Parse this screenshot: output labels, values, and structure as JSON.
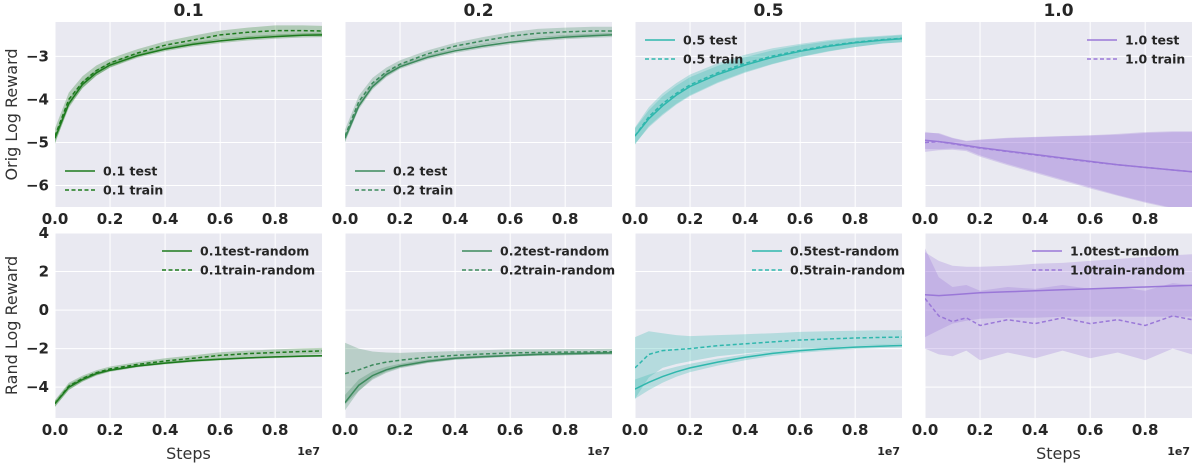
{
  "colors": {
    "panel_bg": "#e9e9f1",
    "grid": "#ffffff",
    "columns": [
      "#1d7a1d",
      "#3c8a5c",
      "#2fb7ad",
      "#9a78d8"
    ]
  },
  "chart_data": [
    {
      "type": "line",
      "title": "0.1",
      "xlabel": "",
      "ylabel": "Orig Log Reward",
      "xlim": [
        0,
        0.97
      ],
      "ylim": [
        -6.5,
        -2.2
      ],
      "xticks": [
        "0.0",
        "0.2",
        "0.4",
        "0.6",
        "0.8"
      ],
      "yticks": [
        "-3",
        "-4",
        "-5",
        "-6"
      ],
      "legend": "bottom-left",
      "x": [
        0,
        0.05,
        0.1,
        0.15,
        0.2,
        0.3,
        0.4,
        0.5,
        0.6,
        0.7,
        0.8,
        0.9,
        0.97
      ],
      "series": [
        {
          "name": "0.1 test",
          "style": "solid",
          "values": [
            -4.9,
            -4.1,
            -3.65,
            -3.38,
            -3.2,
            -2.98,
            -2.83,
            -2.72,
            -2.64,
            -2.58,
            -2.54,
            -2.51,
            -2.5
          ],
          "band": [
            0.1,
            0.1,
            0.08,
            0.07,
            0.06,
            0.05,
            0.05,
            0.05,
            0.05,
            0.05,
            0.05,
            0.05,
            0.05
          ]
        },
        {
          "name": "0.1 train",
          "style": "dashed",
          "values": [
            -4.85,
            -4.0,
            -3.6,
            -3.33,
            -3.15,
            -2.92,
            -2.74,
            -2.62,
            -2.5,
            -2.44,
            -2.4,
            -2.4,
            -2.41
          ],
          "band": [
            0.18,
            0.16,
            0.14,
            0.12,
            0.1,
            0.09,
            0.09,
            0.1,
            0.1,
            0.11,
            0.12,
            0.12,
            0.12
          ]
        }
      ]
    },
    {
      "type": "line",
      "title": "0.2",
      "xlabel": "",
      "ylabel": "",
      "xlim": [
        0,
        0.97
      ],
      "ylim": [
        -6.5,
        -2.2
      ],
      "xticks": [
        "0.0",
        "0.2",
        "0.4",
        "0.6",
        "0.8"
      ],
      "yticks": [],
      "legend": "bottom-left",
      "x": [
        0,
        0.05,
        0.1,
        0.15,
        0.2,
        0.3,
        0.4,
        0.5,
        0.6,
        0.7,
        0.8,
        0.9,
        0.97
      ],
      "series": [
        {
          "name": "0.2 test",
          "style": "solid",
          "values": [
            -4.9,
            -4.15,
            -3.7,
            -3.42,
            -3.24,
            -3.02,
            -2.87,
            -2.76,
            -2.67,
            -2.6,
            -2.55,
            -2.52,
            -2.5
          ],
          "band": [
            0.08,
            0.08,
            0.07,
            0.06,
            0.05,
            0.05,
            0.05,
            0.05,
            0.05,
            0.05,
            0.05,
            0.05,
            0.05
          ]
        },
        {
          "name": "0.2 train",
          "style": "dashed",
          "values": [
            -4.85,
            -4.05,
            -3.62,
            -3.36,
            -3.18,
            -2.94,
            -2.76,
            -2.64,
            -2.53,
            -2.46,
            -2.43,
            -2.41,
            -2.41
          ],
          "band": [
            0.15,
            0.14,
            0.12,
            0.1,
            0.09,
            0.08,
            0.08,
            0.09,
            0.09,
            0.1,
            0.1,
            0.1,
            0.1
          ]
        }
      ]
    },
    {
      "type": "line",
      "title": "0.5",
      "xlabel": "",
      "ylabel": "",
      "xlim": [
        0,
        0.97
      ],
      "ylim": [
        -6.5,
        -2.2
      ],
      "xticks": [
        "0.0",
        "0.2",
        "0.4",
        "0.6",
        "0.8"
      ],
      "yticks": [],
      "legend": "top-left",
      "x": [
        0,
        0.05,
        0.1,
        0.15,
        0.2,
        0.3,
        0.4,
        0.5,
        0.6,
        0.7,
        0.8,
        0.9,
        0.97
      ],
      "series": [
        {
          "name": "0.5 test",
          "style": "solid",
          "values": [
            -4.85,
            -4.45,
            -4.15,
            -3.9,
            -3.7,
            -3.42,
            -3.2,
            -3.02,
            -2.88,
            -2.77,
            -2.68,
            -2.62,
            -2.59
          ],
          "band": [
            0.18,
            0.2,
            0.22,
            0.22,
            0.22,
            0.2,
            0.18,
            0.16,
            0.14,
            0.12,
            0.1,
            0.08,
            0.08
          ]
        },
        {
          "name": "0.5 train",
          "style": "dashed",
          "values": [
            -4.85,
            -4.4,
            -4.1,
            -3.86,
            -3.66,
            -3.38,
            -3.16,
            -2.99,
            -2.86,
            -2.75,
            -2.67,
            -2.61,
            -2.58
          ],
          "band": [
            0.2,
            0.22,
            0.24,
            0.24,
            0.24,
            0.22,
            0.2,
            0.18,
            0.15,
            0.13,
            0.11,
            0.09,
            0.09
          ]
        }
      ]
    },
    {
      "type": "line",
      "title": "1.0",
      "xlabel": "",
      "ylabel": "",
      "xlim": [
        0,
        0.97
      ],
      "ylim": [
        -6.5,
        -2.2
      ],
      "xticks": [
        "0.0",
        "0.2",
        "0.4",
        "0.6",
        "0.8"
      ],
      "yticks": [],
      "legend": "top-right",
      "x": [
        0,
        0.05,
        0.1,
        0.15,
        0.2,
        0.3,
        0.4,
        0.5,
        0.6,
        0.7,
        0.8,
        0.9,
        0.97
      ],
      "series": [
        {
          "name": "1.0 test",
          "style": "solid",
          "values": [
            -4.95,
            -4.98,
            -5.02,
            -5.07,
            -5.12,
            -5.2,
            -5.28,
            -5.36,
            -5.44,
            -5.52,
            -5.58,
            -5.64,
            -5.68
          ],
          "band": [
            0.2,
            0.18,
            0.12,
            0.1,
            0.18,
            0.3,
            0.4,
            0.5,
            0.6,
            0.7,
            0.8,
            0.88,
            0.92
          ]
        },
        {
          "name": "1.0 train",
          "style": "dashed",
          "values": [
            -5.0,
            -4.98,
            -5.03,
            -5.08,
            -5.13,
            -5.21,
            -5.29,
            -5.37,
            -5.45,
            -5.52,
            -5.58,
            -5.64,
            -5.68
          ],
          "band": [
            0.22,
            0.2,
            0.14,
            0.12,
            0.2,
            0.32,
            0.42,
            0.52,
            0.62,
            0.72,
            0.82,
            0.9,
            0.94
          ]
        }
      ]
    },
    {
      "type": "line",
      "title": "",
      "xlabel": "Steps",
      "ylabel": "Rand Log Reward",
      "xlim": [
        0,
        0.97
      ],
      "ylim": [
        -5.6,
        4.0
      ],
      "xticks": [
        "0.0",
        "0.2",
        "0.4",
        "0.6",
        "0.8"
      ],
      "yticks": [
        "4",
        "2",
        "0",
        "-2",
        "-4"
      ],
      "x_offset": "1e7",
      "legend": "top-right",
      "x": [
        0,
        0.05,
        0.1,
        0.15,
        0.2,
        0.3,
        0.4,
        0.5,
        0.6,
        0.7,
        0.8,
        0.9,
        0.97
      ],
      "series": [
        {
          "name": "0.1test-random",
          "style": "solid",
          "values": [
            -4.85,
            -4.0,
            -3.6,
            -3.3,
            -3.12,
            -2.9,
            -2.75,
            -2.63,
            -2.55,
            -2.48,
            -2.43,
            -2.39,
            -2.37
          ],
          "band": [
            0.15,
            0.15,
            0.12,
            0.1,
            0.08,
            0.07,
            0.07,
            0.07,
            0.06,
            0.06,
            0.06,
            0.06,
            0.06
          ]
        },
        {
          "name": "0.1train-random",
          "style": "dashed",
          "values": [
            -4.85,
            -3.95,
            -3.55,
            -3.25,
            -3.05,
            -2.82,
            -2.64,
            -2.5,
            -2.35,
            -2.26,
            -2.2,
            -2.15,
            -2.12
          ],
          "band": [
            0.18,
            0.18,
            0.15,
            0.13,
            0.12,
            0.12,
            0.14,
            0.15,
            0.16,
            0.16,
            0.16,
            0.16,
            0.16
          ]
        }
      ]
    },
    {
      "type": "line",
      "title": "",
      "xlabel": "",
      "ylabel": "",
      "xlim": [
        0,
        0.97
      ],
      "ylim": [
        -5.6,
        4.0
      ],
      "xticks": [
        "0.0",
        "0.2",
        "0.4",
        "0.6",
        "0.8"
      ],
      "yticks": [],
      "x_offset": "1e7",
      "legend": "top-right",
      "x": [
        0,
        0.05,
        0.1,
        0.15,
        0.2,
        0.3,
        0.4,
        0.5,
        0.6,
        0.7,
        0.8,
        0.9,
        0.97
      ],
      "series": [
        {
          "name": "0.2test-random",
          "style": "solid",
          "values": [
            -4.8,
            -3.9,
            -3.4,
            -3.1,
            -2.9,
            -2.65,
            -2.5,
            -2.42,
            -2.36,
            -2.3,
            -2.27,
            -2.24,
            -2.22
          ],
          "band": [
            0.4,
            0.3,
            0.22,
            0.16,
            0.12,
            0.1,
            0.08,
            0.08,
            0.07,
            0.07,
            0.07,
            0.07,
            0.07
          ]
        },
        {
          "name": "0.2train-random",
          "style": "dashed",
          "values": [
            -3.3,
            -3.1,
            -2.85,
            -2.7,
            -2.6,
            -2.45,
            -2.35,
            -2.28,
            -2.22,
            -2.2,
            -2.18,
            -2.17,
            -2.16
          ],
          "band": [
            1.6,
            1.1,
            0.7,
            0.5,
            0.38,
            0.28,
            0.22,
            0.2,
            0.18,
            0.17,
            0.16,
            0.15,
            0.15
          ]
        }
      ]
    },
    {
      "type": "line",
      "title": "",
      "xlabel": "",
      "ylabel": "",
      "xlim": [
        0,
        0.97
      ],
      "ylim": [
        -5.6,
        4.0
      ],
      "xticks": [
        "0.0",
        "0.2",
        "0.4",
        "0.6",
        "0.8"
      ],
      "yticks": [],
      "x_offset": "1e7",
      "legend": "top-right",
      "x": [
        0,
        0.05,
        0.1,
        0.15,
        0.2,
        0.3,
        0.4,
        0.5,
        0.6,
        0.7,
        0.8,
        0.9,
        0.97
      ],
      "series": [
        {
          "name": "0.5test-random",
          "style": "solid",
          "values": [
            -4.1,
            -3.75,
            -3.45,
            -3.2,
            -3.0,
            -2.7,
            -2.45,
            -2.25,
            -2.1,
            -2.0,
            -1.92,
            -1.87,
            -1.84
          ],
          "band": [
            0.5,
            0.4,
            0.32,
            0.26,
            0.22,
            0.18,
            0.15,
            0.13,
            0.12,
            0.11,
            0.1,
            0.1,
            0.1
          ]
        },
        {
          "name": "0.5train-random",
          "style": "dashed",
          "values": [
            -3.0,
            -2.3,
            -2.1,
            -2.05,
            -2.0,
            -1.85,
            -1.75,
            -1.65,
            -1.55,
            -1.5,
            -1.45,
            -1.42,
            -1.4
          ],
          "band": [
            1.6,
            1.2,
            0.9,
            0.75,
            0.65,
            0.55,
            0.5,
            0.45,
            0.42,
            0.4,
            0.38,
            0.37,
            0.36
          ]
        }
      ]
    },
    {
      "type": "line",
      "title": "",
      "xlabel": "Steps",
      "ylabel": "",
      "xlim": [
        0,
        0.97
      ],
      "ylim": [
        -5.6,
        4.0
      ],
      "xticks": [
        "0.0",
        "0.2",
        "0.4",
        "0.6",
        "0.8"
      ],
      "yticks": [],
      "x_offset": "1e7",
      "legend": "top-right",
      "x": [
        0,
        0.05,
        0.1,
        0.15,
        0.2,
        0.3,
        0.4,
        0.5,
        0.6,
        0.7,
        0.8,
        0.9,
        0.97
      ],
      "series": [
        {
          "name": "1.0test-random",
          "style": "solid",
          "values": [
            0.8,
            0.75,
            0.8,
            0.85,
            0.9,
            0.95,
            1.0,
            1.05,
            1.1,
            1.15,
            1.2,
            1.25,
            1.28
          ],
          "band": [
            2.2,
            1.8,
            1.5,
            1.4,
            1.35,
            1.35,
            1.4,
            1.4,
            1.45,
            1.5,
            1.55,
            1.6,
            1.62
          ]
        },
        {
          "name": "1.0train-random",
          "style": "dashed",
          "values": [
            0.6,
            -0.3,
            -0.6,
            -0.4,
            -0.8,
            -0.5,
            -0.7,
            -0.4,
            -0.7,
            -0.5,
            -0.8,
            -0.3,
            -0.5
          ],
          "band": [
            2.6,
            2.0,
            1.8,
            1.7,
            1.8,
            1.7,
            1.8,
            1.7,
            1.8,
            1.7,
            1.8,
            1.7,
            1.8
          ]
        }
      ]
    }
  ]
}
